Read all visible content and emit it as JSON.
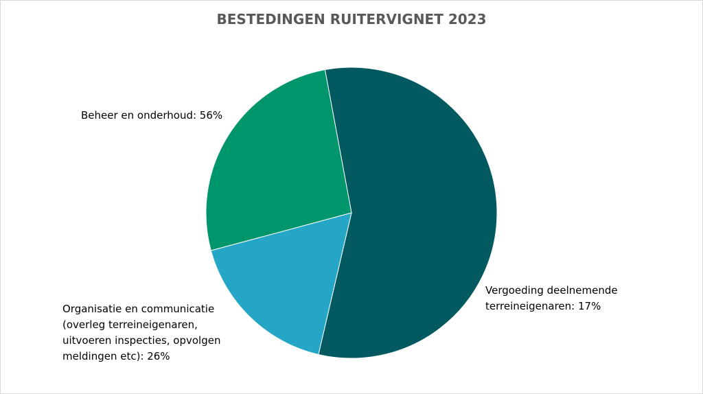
{
  "chart_data": {
    "type": "pie",
    "title": "BESTEDINGEN RUITERVIGNET 2023",
    "slices": [
      {
        "name": "Beheer en onderhoud",
        "value": 56,
        "color": "#025a60",
        "label_lines": [
          "Beheer en onderhoud: 56%"
        ]
      },
      {
        "name": "Vergoeding deelnemende terreineigenaren",
        "value": 17,
        "color": "#25a6c7",
        "label_lines": [
          "Vergoeding deelnemende",
          "terreineigenaren: 17%"
        ]
      },
      {
        "name": "Organisatie en communicatie (overleg terreineigenaren, uitvoeren inspecties, opvolgen meldingen etc)",
        "value": 26,
        "color": "#00956a",
        "label_lines": [
          "Organisatie en communicatie",
          "(overleg terreineigenaren,",
          "uitvoeren inspecties, opvolgen",
          "meldingen etc): 26%"
        ]
      }
    ],
    "legend": "none"
  }
}
